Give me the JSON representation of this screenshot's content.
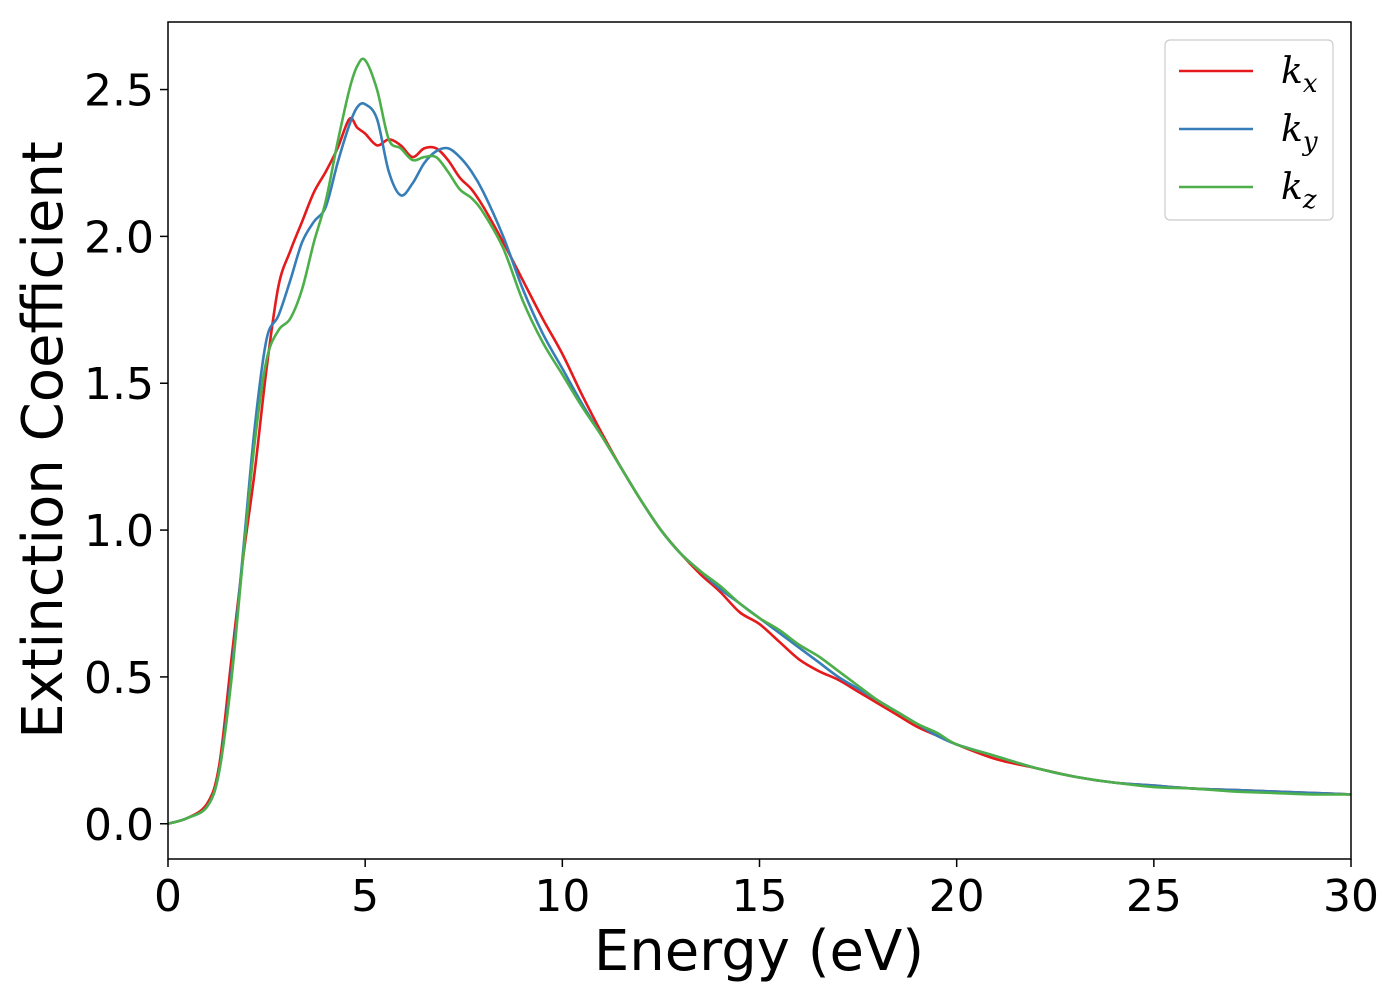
{
  "chart_data": {
    "type": "line",
    "xlabel": "Energy (eV)",
    "ylabel": "Extinction Coefficient",
    "xlim": [
      0,
      30
    ],
    "ylim": [
      -0.12,
      2.73
    ],
    "xticks": [
      0,
      5,
      10,
      15,
      20,
      25,
      30
    ],
    "yticks": [
      0.0,
      0.5,
      1.0,
      1.5,
      2.0,
      2.5
    ],
    "xtick_labels": [
      "0",
      "5",
      "10",
      "15",
      "20",
      "25",
      "30"
    ],
    "ytick_labels": [
      "0.0",
      "0.5",
      "1.0",
      "1.5",
      "2.0",
      "2.5"
    ],
    "grid": false,
    "legend_position": "top-right",
    "series": [
      {
        "name": "k_x",
        "label_main": "k",
        "label_sub": "x",
        "color": "#e41a1c",
        "x": [
          0,
          0.5,
          1.0,
          1.3,
          1.6,
          1.9,
          2.2,
          2.5,
          2.8,
          3.1,
          3.4,
          3.7,
          4.0,
          4.3,
          4.6,
          4.8,
          5.0,
          5.3,
          5.6,
          5.9,
          6.2,
          6.5,
          6.8,
          7.1,
          7.4,
          7.7,
          8.0,
          8.5,
          9.0,
          9.5,
          10.0,
          10.5,
          11.0,
          11.5,
          12.0,
          12.5,
          13.0,
          13.5,
          14.0,
          14.5,
          15.0,
          15.5,
          16.0,
          16.5,
          17.0,
          17.5,
          18.0,
          18.5,
          19.0,
          19.5,
          20.0,
          21.0,
          22.0,
          23.0,
          24.0,
          25.0,
          26.0,
          27.0,
          28.0,
          29.0,
          30.0
        ],
        "y": [
          0.0,
          0.02,
          0.07,
          0.2,
          0.55,
          0.9,
          1.2,
          1.55,
          1.83,
          1.95,
          2.05,
          2.15,
          2.22,
          2.3,
          2.4,
          2.37,
          2.35,
          2.31,
          2.33,
          2.31,
          2.27,
          2.3,
          2.3,
          2.26,
          2.2,
          2.16,
          2.1,
          1.98,
          1.85,
          1.72,
          1.6,
          1.46,
          1.33,
          1.21,
          1.1,
          1.0,
          0.92,
          0.85,
          0.79,
          0.72,
          0.68,
          0.62,
          0.56,
          0.52,
          0.49,
          0.45,
          0.41,
          0.37,
          0.33,
          0.3,
          0.27,
          0.22,
          0.19,
          0.16,
          0.14,
          0.13,
          0.12,
          0.115,
          0.11,
          0.105,
          0.1
        ]
      },
      {
        "name": "k_y",
        "label_main": "k",
        "label_sub": "y",
        "color": "#377eb8",
        "x": [
          0,
          0.5,
          1.0,
          1.3,
          1.6,
          1.9,
          2.2,
          2.5,
          2.8,
          3.1,
          3.4,
          3.7,
          4.0,
          4.3,
          4.6,
          4.8,
          5.0,
          5.3,
          5.6,
          5.9,
          6.2,
          6.5,
          6.8,
          7.1,
          7.4,
          7.7,
          8.0,
          8.5,
          9.0,
          9.5,
          10.0,
          10.5,
          11.0,
          11.5,
          12.0,
          12.5,
          13.0,
          13.5,
          14.0,
          14.5,
          15.0,
          15.5,
          16.0,
          16.5,
          17.0,
          17.5,
          18.0,
          18.5,
          19.0,
          19.5,
          20.0,
          21.0,
          22.0,
          23.0,
          24.0,
          25.0,
          26.0,
          27.0,
          28.0,
          29.0,
          30.0
        ],
        "y": [
          0.0,
          0.02,
          0.06,
          0.18,
          0.5,
          0.92,
          1.35,
          1.65,
          1.73,
          1.85,
          1.98,
          2.05,
          2.1,
          2.25,
          2.38,
          2.44,
          2.45,
          2.4,
          2.22,
          2.14,
          2.18,
          2.25,
          2.29,
          2.3,
          2.27,
          2.22,
          2.15,
          2.0,
          1.82,
          1.67,
          1.55,
          1.43,
          1.32,
          1.21,
          1.1,
          1.0,
          0.92,
          0.86,
          0.8,
          0.75,
          0.7,
          0.65,
          0.6,
          0.55,
          0.5,
          0.46,
          0.42,
          0.38,
          0.34,
          0.3,
          0.27,
          0.23,
          0.19,
          0.16,
          0.14,
          0.13,
          0.12,
          0.115,
          0.11,
          0.105,
          0.1
        ]
      },
      {
        "name": "k_z",
        "label_main": "k",
        "label_sub": "z",
        "color": "#4daf4a",
        "x": [
          0,
          0.5,
          1.0,
          1.3,
          1.6,
          1.9,
          2.2,
          2.5,
          2.8,
          3.1,
          3.4,
          3.7,
          4.0,
          4.3,
          4.6,
          4.8,
          5.0,
          5.3,
          5.6,
          5.9,
          6.2,
          6.5,
          6.8,
          7.1,
          7.4,
          7.7,
          8.0,
          8.5,
          9.0,
          9.5,
          10.0,
          10.5,
          11.0,
          11.5,
          12.0,
          12.5,
          13.0,
          13.5,
          14.0,
          14.5,
          15.0,
          15.5,
          16.0,
          16.5,
          17.0,
          17.5,
          18.0,
          18.5,
          19.0,
          19.5,
          20.0,
          21.0,
          22.0,
          23.0,
          24.0,
          25.0,
          26.0,
          27.0,
          28.0,
          29.0,
          30.0
        ],
        "y": [
          0.0,
          0.02,
          0.06,
          0.18,
          0.48,
          0.9,
          1.3,
          1.58,
          1.68,
          1.72,
          1.82,
          1.98,
          2.12,
          2.32,
          2.5,
          2.58,
          2.6,
          2.5,
          2.33,
          2.3,
          2.26,
          2.27,
          2.27,
          2.22,
          2.16,
          2.13,
          2.08,
          1.96,
          1.78,
          1.64,
          1.53,
          1.42,
          1.32,
          1.21,
          1.1,
          1.0,
          0.92,
          0.86,
          0.81,
          0.75,
          0.7,
          0.66,
          0.61,
          0.57,
          0.52,
          0.47,
          0.42,
          0.38,
          0.34,
          0.31,
          0.27,
          0.23,
          0.19,
          0.16,
          0.14,
          0.125,
          0.12,
          0.11,
          0.105,
          0.1,
          0.1
        ]
      }
    ]
  }
}
